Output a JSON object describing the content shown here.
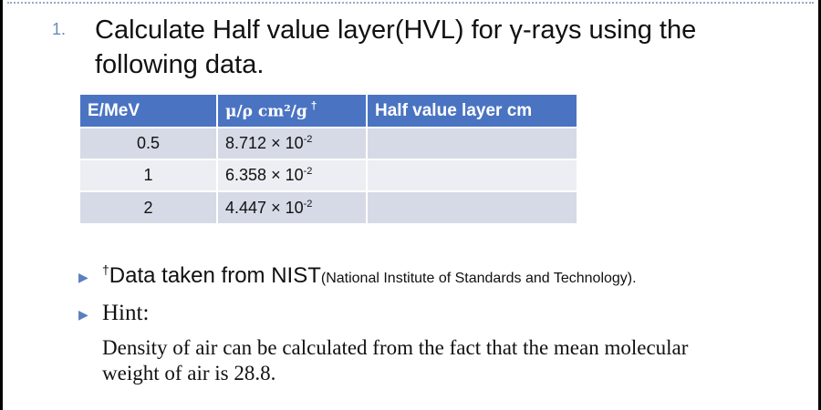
{
  "question": {
    "number": "1.",
    "text": "Calculate Half value layer(HVL) for γ-rays using the following data."
  },
  "table": {
    "headers": {
      "energy": "E/MeV",
      "mu_rho": "μ/ρ  cm²/g",
      "mu_rho_mark": "†",
      "hvl": "Half value layer  cm"
    },
    "rows": [
      {
        "energy": "0.5",
        "mantissa": "8.712",
        "times": "× 10",
        "exponent": "-2",
        "hvl": ""
      },
      {
        "energy": "1",
        "mantissa": "6.358",
        "times": "× 10",
        "exponent": "-2",
        "hvl": ""
      },
      {
        "energy": "2",
        "mantissa": "4.447",
        "times": "× 10",
        "exponent": "-2",
        "hvl": ""
      }
    ]
  },
  "notes": {
    "source_mark": "†",
    "source_main": "Data taken from NIST",
    "source_detail": "(National Institute of Standards and Technology).",
    "hint_label": "Hint:",
    "hint_text": "Density of air can be calculated from the fact that the mean molecular weight of air is 28.8."
  },
  "colors": {
    "header_bg": "#4a74c2",
    "row_odd_bg": "#d6dae6",
    "row_even_bg": "#eceef3",
    "bullet": "#5b7fbf"
  }
}
